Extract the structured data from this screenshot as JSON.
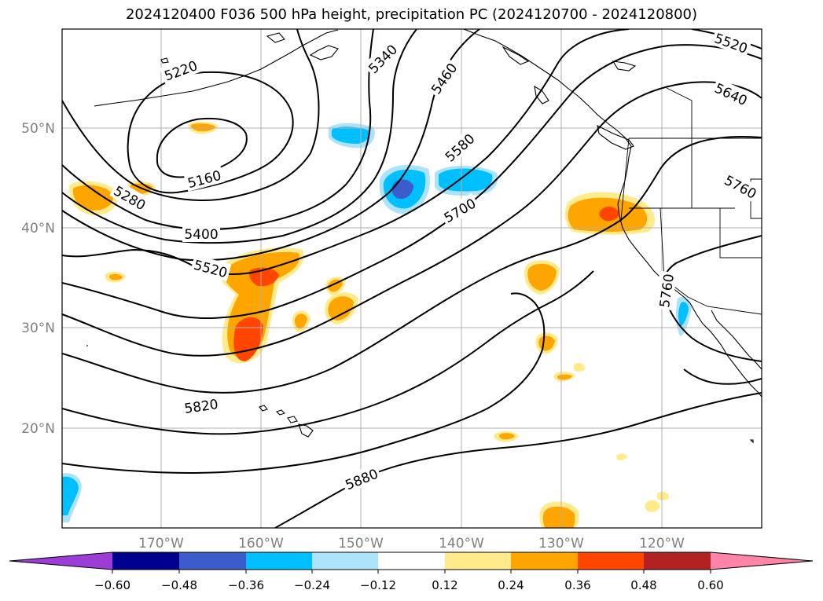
{
  "title": "2024120400 F036 500 hPa height, precipitation PC (2024120700 - 2024120800)",
  "lat_labels": [
    "50°N",
    "40°N",
    "30°N",
    "20°N"
  ],
  "lon_labels": [
    "170°W",
    "160°W",
    "150°W",
    "140°W",
    "130°W",
    "120°W"
  ],
  "contour_labels": [
    "5520",
    "5640",
    "5760",
    "5760",
    "5340",
    "5460",
    "5220",
    "5580",
    "5160",
    "5700",
    "5280",
    "5400",
    "5520",
    "5820",
    "5880"
  ],
  "colorbar": {
    "ticks": [
      "−0.60",
      "−0.48",
      "−0.36",
      "−0.24",
      "−0.12",
      "0.12",
      "0.24",
      "0.36",
      "0.48",
      "0.60"
    ],
    "colors": [
      "#9b3dd6",
      "#00008f",
      "#3c5ccc",
      "#00bfff",
      "#ade3fa",
      "#ffffff",
      "#ffeb8c",
      "#ffa500",
      "#ff4500",
      "#b22222",
      "#ff85a8"
    ]
  }
}
